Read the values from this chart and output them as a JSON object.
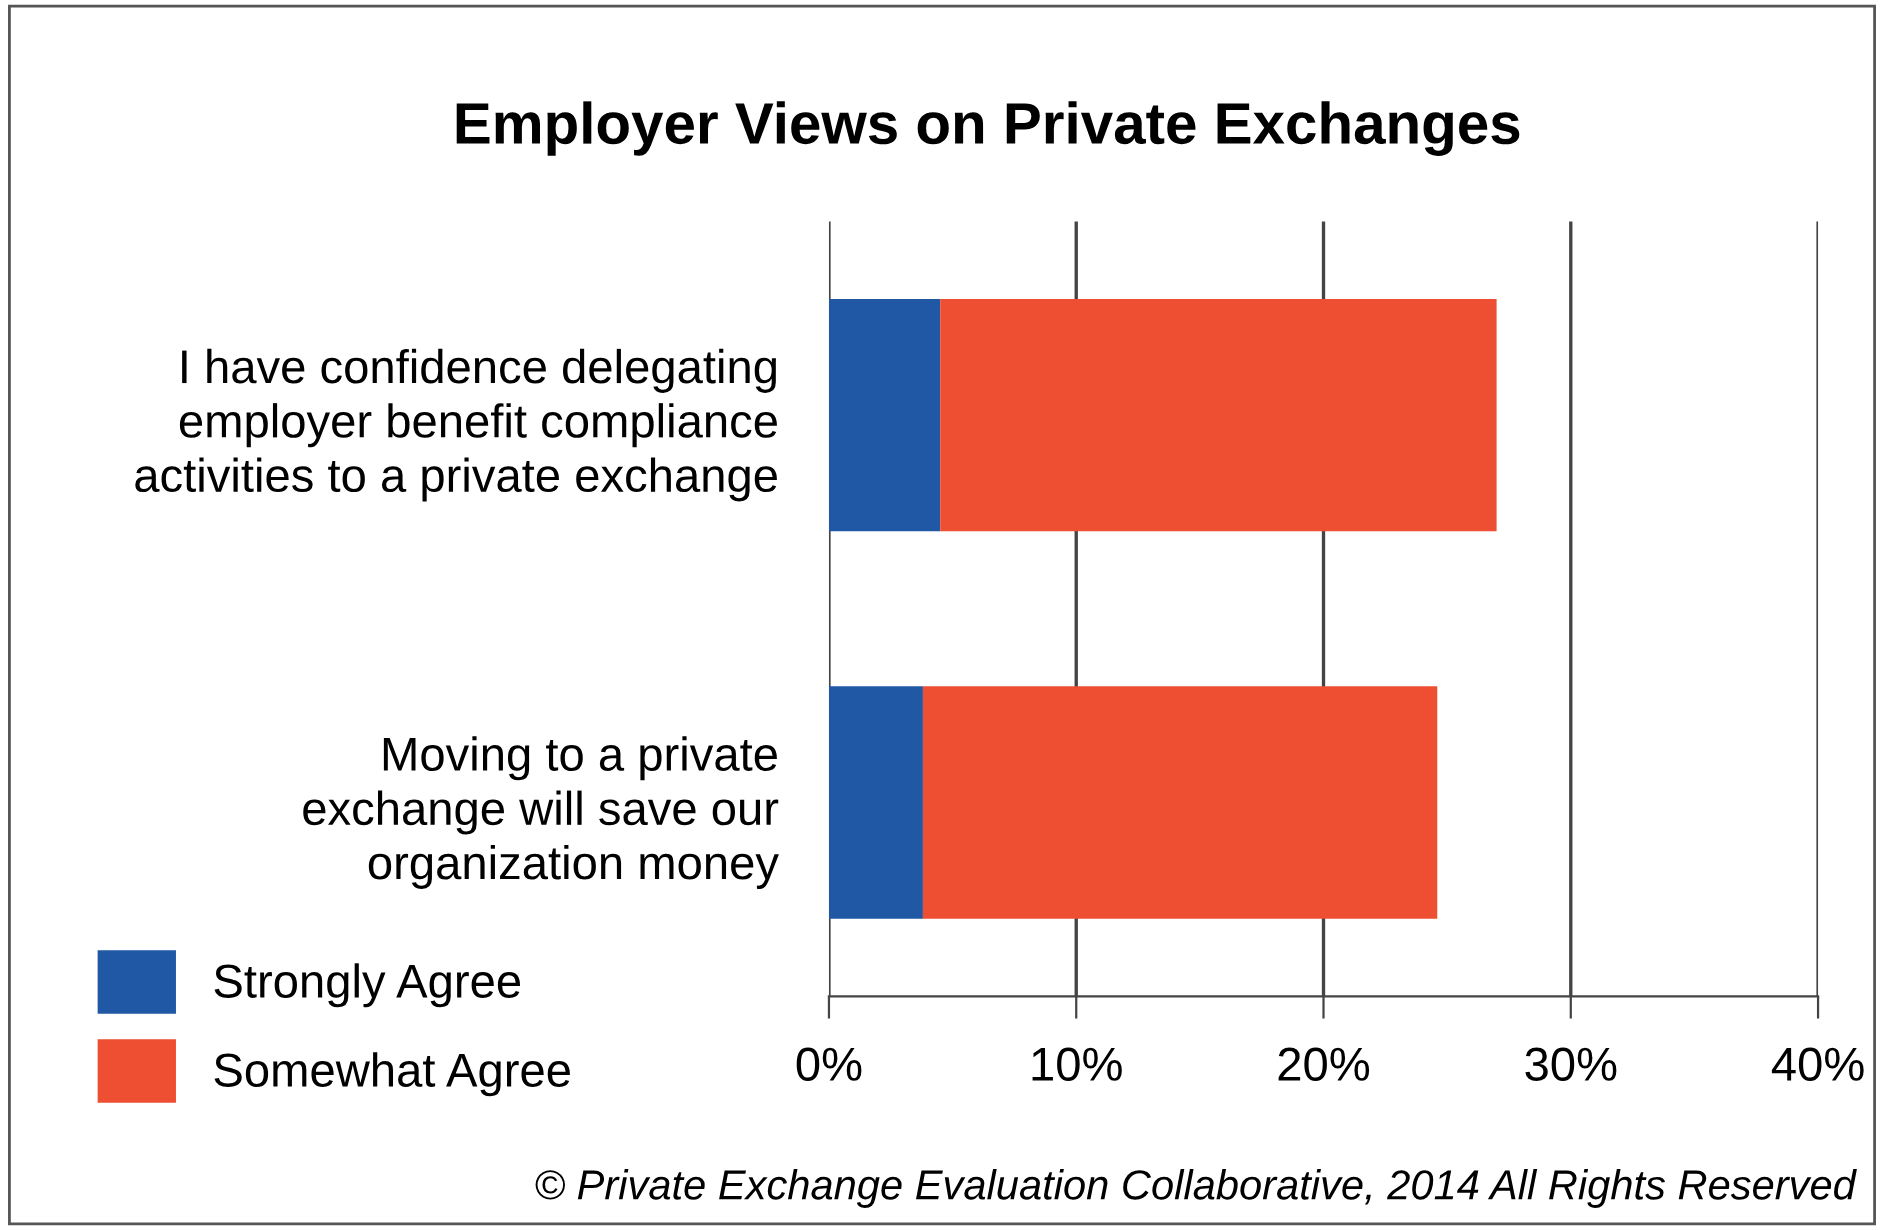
{
  "chart_data": {
    "type": "bar",
    "orientation": "horizontal",
    "stacked": true,
    "title": "Employer Views on Private Exchanges",
    "categories": [
      "I have confidence delegating\nemployer benefit compliance\nactivities to a private exchange",
      "Moving to a private\nexchange will save our\norganization money"
    ],
    "series": [
      {
        "name": "Strongly Agree",
        "color": "#2158a5",
        "values": [
          4.5,
          3.8
        ]
      },
      {
        "name": "Somewhat Agree",
        "color": "#ee4f33",
        "values": [
          22.5,
          20.8
        ]
      }
    ],
    "xlim": [
      0,
      40
    ],
    "xticks": [
      {
        "value": 0,
        "label": "0%"
      },
      {
        "value": 10,
        "label": "10%"
      },
      {
        "value": 20,
        "label": "20%"
      },
      {
        "value": 30,
        "label": "30%"
      },
      {
        "value": 40,
        "label": "40%"
      }
    ],
    "grid": "x",
    "legend": "bottom left",
    "annotations": [
      "© Private Exchange Evaluation Collaborative, 2014 All Rights Reserved"
    ]
  }
}
